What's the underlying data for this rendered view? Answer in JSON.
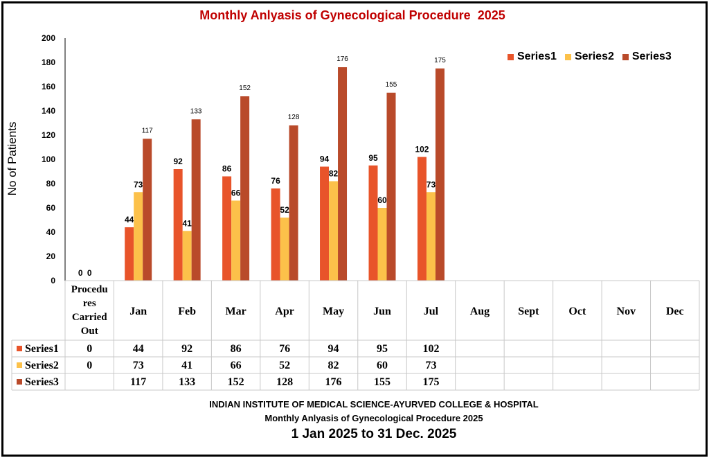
{
  "chart_data": {
    "type": "bar",
    "title": "Monthly Anlyasis of Gynecological Procedure  2025",
    "ylabel": "No of Patients",
    "ylim": [
      0,
      200
    ],
    "yticks": [
      0,
      20,
      40,
      60,
      80,
      100,
      120,
      140,
      160,
      180,
      200
    ],
    "categories": [
      "Procedures Carried Out",
      "Jan",
      "Feb",
      "Mar",
      "Apr",
      "May",
      "Jun",
      "Jul",
      "Aug",
      "Sept",
      "Oct",
      "Nov",
      "Dec"
    ],
    "series": [
      {
        "name": "Series1",
        "color": "#e8542a",
        "values": [
          0,
          44,
          92,
          86,
          76,
          94,
          95,
          102,
          null,
          null,
          null,
          null,
          null
        ]
      },
      {
        "name": "Series2",
        "color": "#fcc14a",
        "values": [
          0,
          73,
          41,
          66,
          52,
          82,
          60,
          73,
          null,
          null,
          null,
          null,
          null
        ]
      },
      {
        "name": "Series3",
        "color": "#b94a2a",
        "values": [
          null,
          117,
          133,
          152,
          128,
          176,
          155,
          175,
          null,
          null,
          null,
          null,
          null
        ]
      }
    ],
    "legend_position": "top-right",
    "grid": false,
    "data_table": true
  },
  "first_category_lines": [
    "Procedu",
    "res",
    "Carried",
    "Out"
  ],
  "footer": {
    "line1": "INDIAN INSTITUTE OF MEDICAL SCIENCE-AYURVED COLLEGE & HOSPITAL",
    "line2": "Monthly Anlyasis of Gynecological Procedure  2025",
    "line3": "1 Jan 2025 to 31 Dec. 2025"
  }
}
